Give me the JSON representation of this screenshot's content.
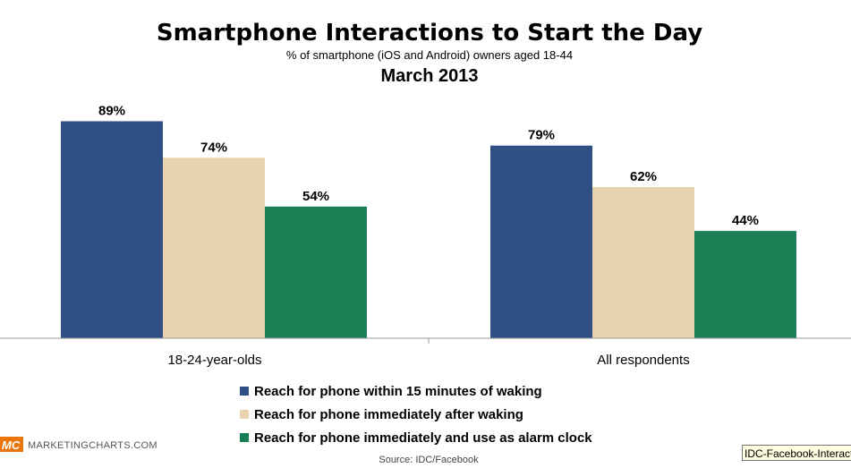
{
  "chart_data": {
    "type": "bar",
    "title": "Smartphone Interactions to Start the Day",
    "subtitle": "% of smartphone (iOS and Android) owners aged 18-44",
    "subtitle2": "March 2013",
    "categories": [
      "18-24-year-olds",
      "All respondents"
    ],
    "series": [
      {
        "name": "Reach for phone within 15 minutes of waking",
        "values": [
          89,
          79
        ],
        "labels": [
          "89%",
          "79%"
        ],
        "color": "#2f4f85"
      },
      {
        "name": "Reach for phone immediately after waking",
        "values": [
          74,
          62
        ],
        "labels": [
          "74%",
          "62%"
        ],
        "color": "#e8d3b0"
      },
      {
        "name": "Reach for phone immediately and use as alarm clock",
        "values": [
          54,
          44
        ],
        "labels": [
          "54%",
          "44%"
        ],
        "color": "#1a7f55"
      }
    ],
    "ylim": [
      0,
      100
    ],
    "legend_position": "bottom",
    "grid": false
  },
  "branding": {
    "logo": "MC",
    "site": "MARKETINGCHARTS.COM",
    "logo_color": "#e8760a"
  },
  "source": "Source: IDC/Facebook",
  "tooltip": "IDC-Facebook-Interact"
}
